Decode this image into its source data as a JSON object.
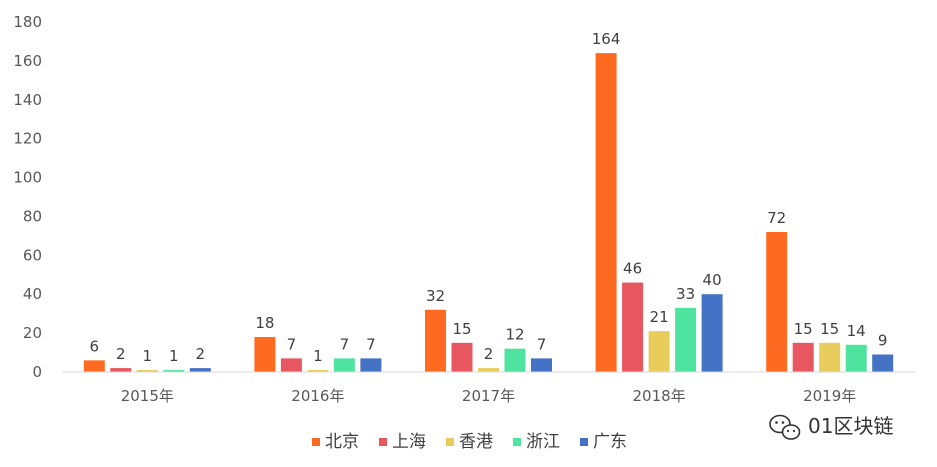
{
  "chart_data": {
    "type": "bar",
    "title": "",
    "xlabel": "",
    "ylabel": "",
    "categories": [
      "2015年",
      "2016年",
      "2017年",
      "2018年",
      "2019年"
    ],
    "ylim": [
      0,
      180
    ],
    "yticks": [
      0,
      20,
      40,
      60,
      80,
      100,
      120,
      140,
      160,
      180
    ],
    "grid": false,
    "legend_position": "bottom",
    "series": [
      {
        "name": "北京",
        "color": "#FF6A21",
        "values": [
          6,
          18,
          32,
          164,
          72
        ]
      },
      {
        "name": "上海",
        "color": "#E8565F",
        "values": [
          2,
          7,
          15,
          46,
          15
        ]
      },
      {
        "name": "香港",
        "color": "#E8CC5C",
        "values": [
          1,
          1,
          2,
          21,
          15
        ]
      },
      {
        "name": "浙江",
        "color": "#4FE3A0",
        "values": [
          1,
          7,
          12,
          33,
          14
        ]
      },
      {
        "name": "广东",
        "color": "#4472C4",
        "values": [
          2,
          7,
          7,
          40,
          9
        ]
      }
    ]
  },
  "watermark": {
    "icon": "wechat-icon",
    "text": "01区块链"
  }
}
